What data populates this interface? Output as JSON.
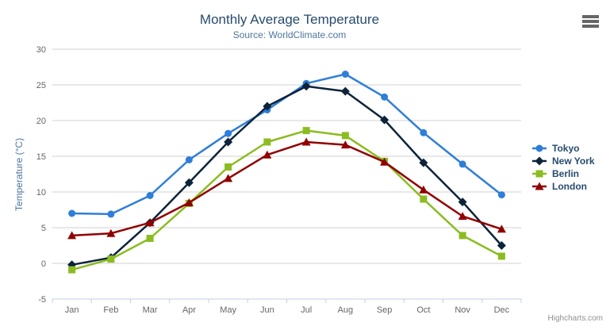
{
  "header": {
    "title": "Monthly Average Temperature",
    "subtitle": "Source: WorldClimate.com"
  },
  "export_menu": {
    "icon": "hamburger-icon"
  },
  "credits": {
    "label": "Highcharts.com"
  },
  "chart_data": {
    "type": "line",
    "title": "Monthly Average Temperature",
    "subtitle": "Source: WorldClimate.com",
    "categories": [
      "Jan",
      "Feb",
      "Mar",
      "Apr",
      "May",
      "Jun",
      "Jul",
      "Aug",
      "Sep",
      "Oct",
      "Nov",
      "Dec"
    ],
    "xlabel": "",
    "ylabel": "Temperature (°C)",
    "ylim": [
      -5,
      30
    ],
    "tick_interval": 5,
    "grid": true,
    "legend_position": "right",
    "series": [
      {
        "name": "Tokyo",
        "color": "#2f7ed8",
        "marker": "circle",
        "values": [
          7.0,
          6.9,
          9.5,
          14.5,
          18.2,
          21.5,
          25.2,
          26.5,
          23.3,
          18.3,
          13.9,
          9.6
        ]
      },
      {
        "name": "New York",
        "color": "#0d233a",
        "marker": "diamond",
        "values": [
          -0.2,
          0.8,
          5.7,
          11.3,
          17.0,
          22.0,
          24.8,
          24.1,
          20.1,
          14.1,
          8.6,
          2.5
        ]
      },
      {
        "name": "Berlin",
        "color": "#8bbc21",
        "marker": "square",
        "values": [
          -0.9,
          0.6,
          3.5,
          8.4,
          13.5,
          17.0,
          18.6,
          17.9,
          14.3,
          9.0,
          3.9,
          1.0
        ]
      },
      {
        "name": "London",
        "color": "#910000",
        "marker": "triangle",
        "values": [
          3.9,
          4.2,
          5.7,
          8.5,
          11.9,
          15.2,
          17.0,
          16.6,
          14.2,
          10.3,
          6.6,
          4.8
        ]
      }
    ],
    "style": {
      "grid_color": "#d0d0d0",
      "axis_line_color": "#c0d0e0",
      "tick_color": "#c0d0e0",
      "axis_label_color": "#666666",
      "title_color": "#274b6d",
      "subtitle_color": "#4d759e",
      "legend_text_color": "#274b6d",
      "credits_color": "#909090"
    }
  }
}
